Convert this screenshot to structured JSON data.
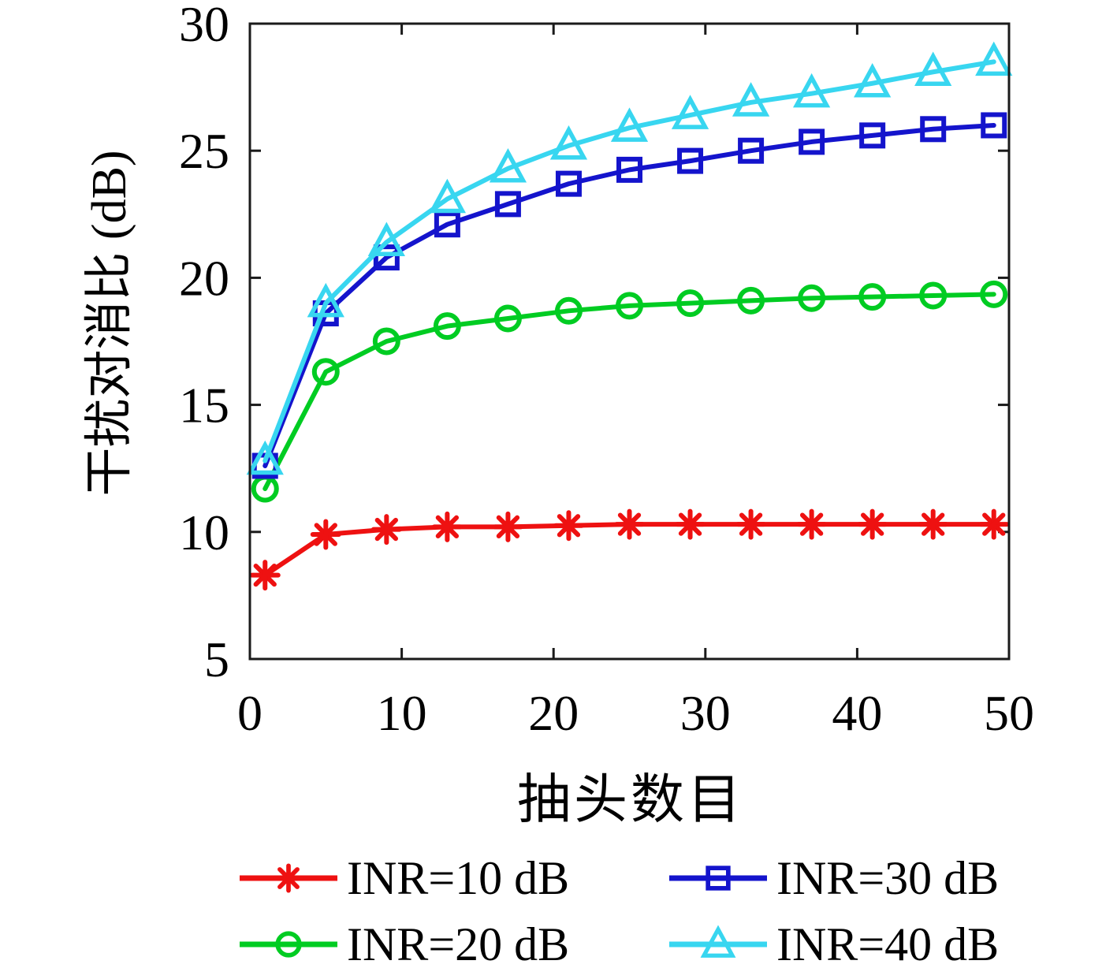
{
  "chart_data": {
    "type": "line",
    "title": "",
    "xlabel": "抽头数目",
    "ylabel": "干扰对消比 (dB)",
    "xlim": [
      0,
      50
    ],
    "ylim": [
      5,
      30
    ],
    "xticks": [
      0,
      10,
      20,
      30,
      40,
      50
    ],
    "yticks": [
      5,
      10,
      15,
      20,
      25,
      30
    ],
    "grid": false,
    "box": true,
    "axis_color": "#1a1a1a",
    "legend_position": "below-plot-two-columns",
    "x": [
      1,
      5,
      9,
      13,
      17,
      21,
      25,
      29,
      33,
      37,
      41,
      45,
      49
    ],
    "series": [
      {
        "name": "INR=10 dB",
        "color": "#ee1111",
        "marker": "asterisk",
        "values": [
          8.3,
          9.9,
          10.1,
          10.2,
          10.2,
          10.25,
          10.3,
          10.3,
          10.3,
          10.3,
          10.3,
          10.3,
          10.3
        ]
      },
      {
        "name": "INR=20 dB",
        "color": "#00cc22",
        "marker": "circle",
        "values": [
          11.7,
          16.3,
          17.5,
          18.1,
          18.4,
          18.7,
          18.9,
          19.0,
          19.1,
          19.2,
          19.25,
          19.3,
          19.35
        ]
      },
      {
        "name": "INR=30 dB",
        "color": "#1414cc",
        "marker": "square",
        "values": [
          12.6,
          18.6,
          20.8,
          22.1,
          22.9,
          23.7,
          24.25,
          24.6,
          25.0,
          25.35,
          25.6,
          25.85,
          26.0
        ]
      },
      {
        "name": "INR=40 dB",
        "color": "#38d6f0",
        "marker": "triangle",
        "values": [
          12.8,
          19.0,
          21.4,
          23.1,
          24.3,
          25.2,
          25.9,
          26.4,
          26.9,
          27.25,
          27.65,
          28.1,
          28.5
        ]
      }
    ],
    "legend_visual_order": [
      0,
      2,
      1,
      3
    ]
  }
}
